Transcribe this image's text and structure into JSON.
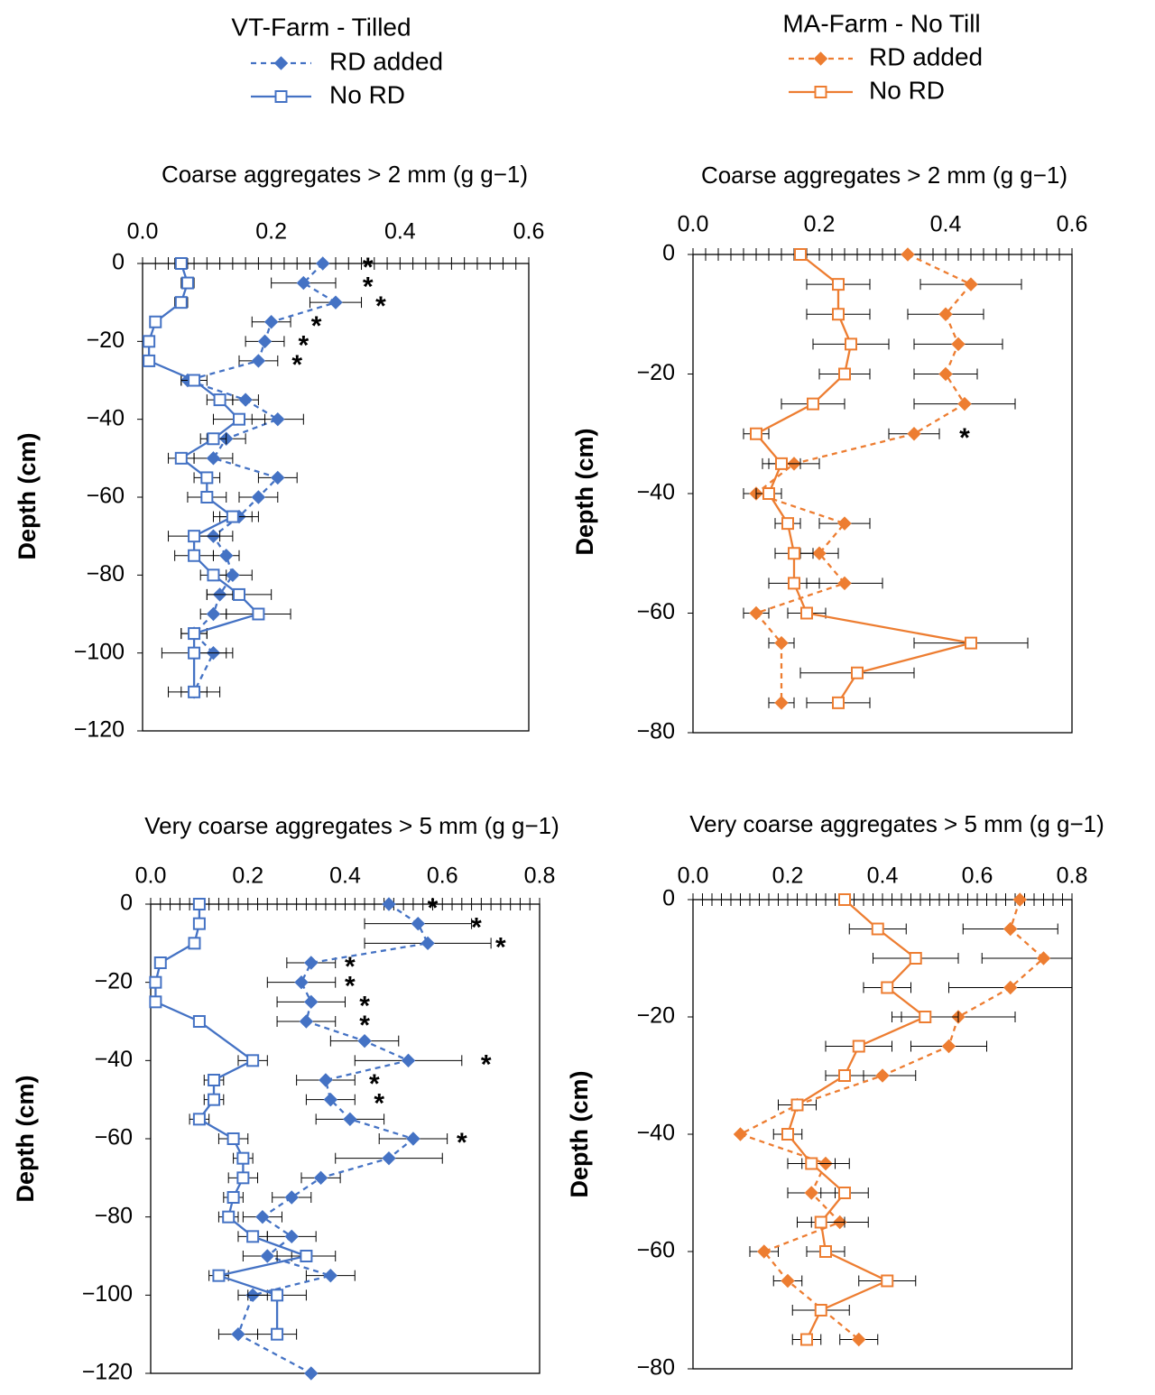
{
  "legends": [
    {
      "title": "VT-Farm - Tilled",
      "entries": [
        "RD added",
        "No RD"
      ],
      "color": "#4472C4"
    },
    {
      "title": "MA-Farm - No Till",
      "entries": [
        "RD added",
        "No RD"
      ],
      "color": "#ED7D31"
    }
  ],
  "chart_data": [
    {
      "type": "line",
      "panel": "VT coarse",
      "title": "Coarse aggregates > 2 mm (g g−1)",
      "xlabel": "Coarse aggregates > 2 mm (g g−1)",
      "ylabel": "Depth (cm)",
      "xlim": [
        0,
        0.6
      ],
      "ylim": [
        -120,
        0
      ],
      "xticks": [
        "0.0",
        "0.2",
        "0.4",
        "0.6"
      ],
      "yticks": [
        "0",
        "-20",
        "-40",
        "-60",
        "-80",
        "-100",
        "-120"
      ],
      "color": "#4472C4",
      "series": [
        {
          "name": "RD added",
          "style": "dashed",
          "marker": "diamond",
          "y": [
            0,
            -5,
            -10,
            -15,
            -20,
            -25,
            -30,
            -35,
            -40,
            -45,
            -50,
            -55,
            -60,
            -65,
            -70,
            -75,
            -80,
            -85,
            -90,
            -95,
            -100,
            -110
          ],
          "x": [
            0.28,
            0.25,
            0.3,
            0.2,
            0.19,
            0.18,
            0.07,
            0.16,
            0.21,
            0.13,
            0.11,
            0.21,
            0.18,
            0.15,
            0.11,
            0.13,
            0.14,
            0.12,
            0.11,
            0.08,
            0.11,
            0.08
          ],
          "err": [
            0.02,
            0.05,
            0.04,
            0.03,
            0.03,
            0.03,
            0.01,
            0.02,
            0.04,
            0.03,
            0.03,
            0.03,
            0.03,
            0.03,
            0.03,
            0.02,
            0.03,
            0.02,
            0.02,
            0.02,
            0.03,
            0.02
          ]
        },
        {
          "name": "No RD",
          "style": "solid",
          "marker": "square",
          "y": [
            0,
            -5,
            -10,
            -15,
            -20,
            -25,
            -30,
            -35,
            -40,
            -45,
            -50,
            -55,
            -60,
            -65,
            -70,
            -75,
            -80,
            -85,
            -90,
            -95,
            -100,
            -110
          ],
          "x": [
            0.06,
            0.07,
            0.06,
            0.02,
            0.01,
            0.01,
            0.08,
            0.12,
            0.15,
            0.11,
            0.06,
            0.1,
            0.1,
            0.14,
            0.08,
            0.08,
            0.11,
            0.15,
            0.18,
            0.08,
            0.08,
            0.08
          ],
          "err": [
            0.01,
            0.01,
            0.01,
            0.005,
            0.005,
            0.005,
            0.02,
            0.02,
            0.04,
            0.02,
            0.02,
            0.02,
            0.03,
            0.03,
            0.04,
            0.03,
            0.02,
            0.05,
            0.05,
            0.02,
            0.05,
            0.04
          ]
        }
      ],
      "annotations": [
        {
          "text": "*",
          "x": 0.35,
          "y": 0
        },
        {
          "text": "*",
          "x": 0.35,
          "y": -5
        },
        {
          "text": "*",
          "x": 0.37,
          "y": -10
        },
        {
          "text": "*",
          "x": 0.27,
          "y": -15
        },
        {
          "text": "*",
          "x": 0.25,
          "y": -20
        },
        {
          "text": "*",
          "x": 0.24,
          "y": -25
        }
      ]
    },
    {
      "type": "line",
      "panel": "MA coarse",
      "title": "Coarse aggregates > 2 mm (g g−1)",
      "xlabel": "Coarse aggregates > 2 mm (g g−1)",
      "ylabel": "Depth (cm)",
      "xlim": [
        0,
        0.6
      ],
      "ylim": [
        -80,
        0
      ],
      "xticks": [
        "0.0",
        "0.2",
        "0.4",
        "0.6"
      ],
      "yticks": [
        "0",
        "-20",
        "-40",
        "-60",
        "-80"
      ],
      "color": "#ED7D31",
      "series": [
        {
          "name": "RD added",
          "style": "dashed",
          "marker": "diamond",
          "y": [
            0,
            -5,
            -10,
            -15,
            -20,
            -25,
            -30,
            -35,
            -40,
            -45,
            -50,
            -55,
            -60,
            -65,
            -75
          ],
          "x": [
            0.34,
            0.44,
            0.4,
            0.42,
            0.4,
            0.43,
            0.35,
            0.16,
            0.1,
            0.24,
            0.2,
            0.24,
            0.1,
            0.14,
            0.14
          ],
          "err": [
            0.0,
            0.08,
            0.06,
            0.07,
            0.05,
            0.08,
            0.04,
            0.04,
            0.02,
            0.04,
            0.03,
            0.06,
            0.02,
            0.02,
            0.02
          ]
        },
        {
          "name": "No RD",
          "style": "solid",
          "marker": "square",
          "y": [
            0,
            -5,
            -10,
            -15,
            -20,
            -25,
            -30,
            -35,
            -40,
            -45,
            -50,
            -55,
            -60,
            -65,
            -70,
            -75
          ],
          "x": [
            0.17,
            0.23,
            0.23,
            0.25,
            0.24,
            0.19,
            0.1,
            0.14,
            0.12,
            0.15,
            0.16,
            0.16,
            0.18,
            0.44,
            0.26,
            0.23
          ],
          "err": [
            0.0,
            0.05,
            0.05,
            0.06,
            0.04,
            0.05,
            0.02,
            0.03,
            0.02,
            0.02,
            0.03,
            0.04,
            0.03,
            0.09,
            0.09,
            0.05
          ]
        }
      ],
      "annotations": [
        {
          "text": "*",
          "x": 0.43,
          "y": -30
        }
      ]
    },
    {
      "type": "line",
      "panel": "VT very coarse",
      "title": "Very coarse aggregates > 5 mm (g g−1)",
      "xlabel": "Very coarse aggregates > 5 mm (g g−1)",
      "ylabel": "Depth (cm)",
      "xlim": [
        0,
        0.8
      ],
      "ylim": [
        -120,
        0
      ],
      "xticks": [
        "0.0",
        "0.2",
        "0.4",
        "0.6",
        "0.8"
      ],
      "yticks": [
        "0",
        "-20",
        "-40",
        "-60",
        "-80",
        "-100",
        "-120"
      ],
      "color": "#4472C4",
      "series": [
        {
          "name": "RD added",
          "style": "dashed",
          "marker": "diamond",
          "y": [
            0,
            -5,
            -10,
            -15,
            -20,
            -25,
            -30,
            -35,
            -40,
            -45,
            -50,
            -55,
            -60,
            -65,
            -70,
            -75,
            -80,
            -85,
            -90,
            -95,
            -100,
            -110,
            -120
          ],
          "x": [
            0.49,
            0.55,
            0.57,
            0.33,
            0.31,
            0.33,
            0.32,
            0.44,
            0.53,
            0.36,
            0.37,
            0.41,
            0.54,
            0.49,
            0.35,
            0.29,
            0.23,
            0.29,
            0.24,
            0.37,
            0.21,
            0.18,
            0.33
          ],
          "err": [
            0.0,
            0.11,
            0.13,
            0.05,
            0.07,
            0.07,
            0.06,
            0.07,
            0.11,
            0.06,
            0.05,
            0.07,
            0.07,
            0.11,
            0.04,
            0.04,
            0.04,
            0.05,
            0.05,
            0.05,
            0.03,
            0.04,
            0.0
          ]
        },
        {
          "name": "No RD",
          "style": "solid",
          "marker": "square",
          "y": [
            0,
            -5,
            -10,
            -15,
            -20,
            -25,
            -30,
            -40,
            -45,
            -50,
            -55,
            -60,
            -65,
            -70,
            -75,
            -80,
            -85,
            -90,
            -95,
            -100,
            -110
          ],
          "x": [
            0.1,
            0.1,
            0.09,
            0.02,
            0.01,
            0.01,
            0.1,
            0.21,
            0.13,
            0.13,
            0.1,
            0.17,
            0.19,
            0.19,
            0.17,
            0.16,
            0.21,
            0.32,
            0.14,
            0.26,
            0.26
          ],
          "err": [
            0.01,
            0.01,
            0.01,
            0.005,
            0.005,
            0.005,
            0.01,
            0.03,
            0.02,
            0.02,
            0.02,
            0.03,
            0.02,
            0.03,
            0.02,
            0.02,
            0.03,
            0.06,
            0.02,
            0.06,
            0.04
          ]
        }
      ],
      "annotations": [
        {
          "text": "*",
          "x": 0.58,
          "y": 0
        },
        {
          "text": "*",
          "x": 0.67,
          "y": -5
        },
        {
          "text": "*",
          "x": 0.72,
          "y": -10
        },
        {
          "text": "*",
          "x": 0.41,
          "y": -15
        },
        {
          "text": "*",
          "x": 0.41,
          "y": -20
        },
        {
          "text": "*",
          "x": 0.44,
          "y": -25
        },
        {
          "text": "*",
          "x": 0.44,
          "y": -30
        },
        {
          "text": "*",
          "x": 0.69,
          "y": -40
        },
        {
          "text": "*",
          "x": 0.46,
          "y": -45
        },
        {
          "text": "*",
          "x": 0.47,
          "y": -50
        },
        {
          "text": "*",
          "x": 0.64,
          "y": -60
        }
      ]
    },
    {
      "type": "line",
      "panel": "MA very coarse",
      "title": "Very coarse aggregates > 5 mm (g g−1)",
      "xlabel": "Very coarse aggregates > 5 mm (g g−1)",
      "ylabel": "Depth (cm)",
      "xlim": [
        0,
        0.8
      ],
      "ylim": [
        -80,
        0
      ],
      "xticks": [
        "0.0",
        "0.2",
        "0.4",
        "0.6",
        "0.8"
      ],
      "yticks": [
        "0",
        "-20",
        "-40",
        "-60",
        "-80"
      ],
      "color": "#ED7D31",
      "series": [
        {
          "name": "RD added",
          "style": "dashed",
          "marker": "diamond",
          "y": [
            0,
            -5,
            -10,
            -15,
            -20,
            -25,
            -30,
            -35,
            -40,
            -45,
            -50,
            -55,
            -60,
            -65,
            -75
          ],
          "x": [
            0.69,
            0.67,
            0.74,
            0.67,
            0.56,
            0.54,
            0.4,
            0.22,
            0.1,
            0.28,
            0.25,
            0.31,
            0.15,
            0.2,
            0.35
          ],
          "err": [
            0.0,
            0.1,
            0.13,
            0.13,
            0.12,
            0.08,
            0.07,
            0.04,
            0.0,
            0.05,
            0.05,
            0.06,
            0.03,
            0.03,
            0.04
          ]
        },
        {
          "name": "No RD",
          "style": "solid",
          "marker": "square",
          "y": [
            0,
            -5,
            -10,
            -15,
            -20,
            -25,
            -30,
            -35,
            -40,
            -45,
            -50,
            -55,
            -60,
            -65,
            -70,
            -75
          ],
          "x": [
            0.32,
            0.39,
            0.47,
            0.41,
            0.49,
            0.35,
            0.32,
            0.22,
            0.2,
            0.25,
            0.32,
            0.27,
            0.28,
            0.41,
            0.27,
            0.24
          ],
          "err": [
            0.0,
            0.06,
            0.09,
            0.05,
            0.07,
            0.07,
            0.04,
            0.04,
            0.03,
            0.05,
            0.05,
            0.05,
            0.04,
            0.06,
            0.06,
            0.03
          ]
        }
      ],
      "annotations": []
    }
  ]
}
